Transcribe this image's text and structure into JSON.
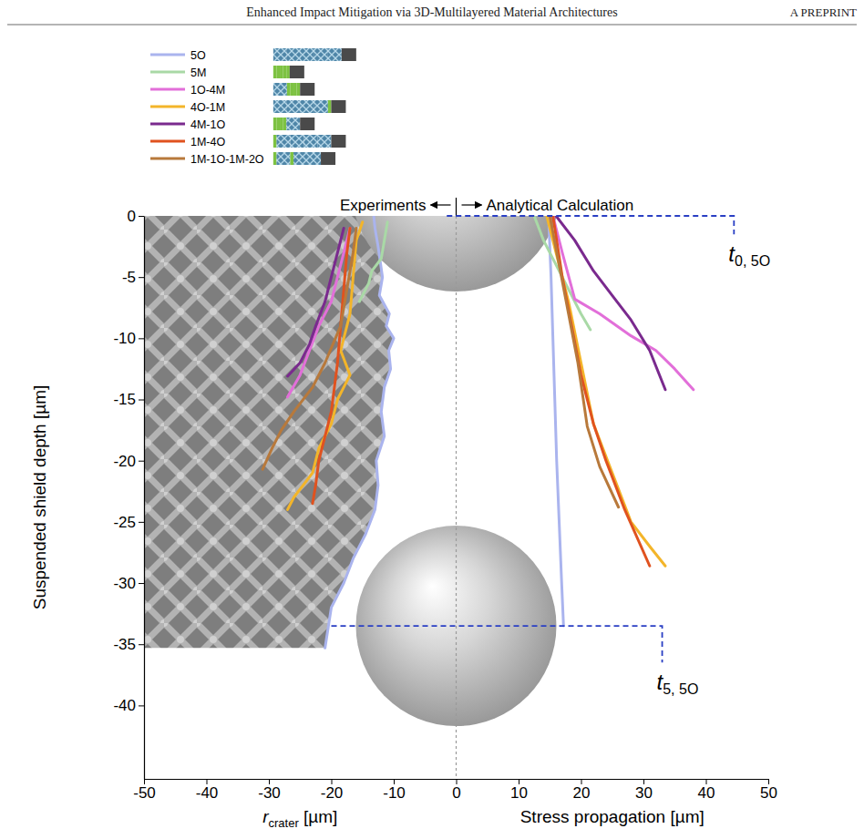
{
  "header": {
    "title": "Enhanced Impact Mitigation via 3D-Multilayered Material Architectures",
    "label": "A PREPRINT"
  },
  "chart_data": {
    "type": "line",
    "ylabel": "Suspended shield depth [µm]",
    "xlabel_left": {
      "text": "r",
      "subscript": "crater",
      "after": " [µm]"
    },
    "xlabel_right": "Stress propagation [µm]",
    "xlim": [
      -50,
      50
    ],
    "xticks": [
      -50,
      -40,
      -30,
      -20,
      -10,
      0,
      10,
      20,
      30,
      40,
      50
    ],
    "ylim": [
      -46,
      0
    ],
    "yticks": [
      -40,
      -35,
      -30,
      -25,
      -20,
      -15,
      -10,
      -5,
      0
    ],
    "legend": "top-left",
    "divider": {
      "x": 0,
      "left_text": "Experiments",
      "right_text": "Analytical Calculation"
    },
    "annotations": [
      {
        "text": "t",
        "subscript": "0, 5O",
        "line_x": [
          -1.5,
          44.5,
          44.5
        ],
        "line_y": [
          0,
          0,
          -1.5
        ]
      },
      {
        "text": "t",
        "subscript": "5, 5O",
        "line_x": [
          -20,
          33,
          33
        ],
        "line_y": [
          -33.5,
          -33.5,
          -36.5
        ]
      }
    ],
    "series": [
      {
        "name": "5O",
        "color": "#aab4ee",
        "experiment": {
          "x": [
            -13.2,
            -13.0,
            -12.5,
            -11.8,
            -12.3,
            -10.7,
            -11.2,
            -10.0,
            -10.8,
            -10.5,
            -11.5,
            -12.0,
            -11.5,
            -12.8,
            -12.5,
            -13.0,
            -14.5,
            -16.5,
            -18.0,
            -20.0,
            -21.0
          ],
          "values": [
            0,
            -1,
            -2.5,
            -5,
            -6.5,
            -8,
            -9,
            -10,
            -11,
            -12.5,
            -14,
            -16,
            -18,
            -20,
            -22,
            -24,
            -26,
            -28,
            -30,
            -32,
            -35.3
          ]
        },
        "analytical": {
          "x": [
            14.8,
            15.2,
            15.5,
            15.8,
            16.1,
            16.5,
            16.9,
            17.2
          ],
          "values": [
            0,
            -5,
            -10,
            -15,
            -20,
            -25,
            -30,
            -33.5
          ]
        }
      },
      {
        "name": "5M",
        "color": "#a9d9a6",
        "experiment": {
          "x": [
            -11,
            -11.5,
            -12,
            -13.5,
            -14,
            -15.5
          ],
          "values": [
            -0.5,
            -2,
            -3.5,
            -4.5,
            -5.5,
            -7
          ]
        },
        "analytical": {
          "x": [
            12.5,
            14,
            17,
            20,
            21.5
          ],
          "values": [
            0,
            -2,
            -5,
            -8,
            -9.3
          ]
        }
      },
      {
        "name": "1O-4M",
        "color": "#e26fd9",
        "experiment": {
          "x": [
            -17,
            -18,
            -19,
            -20,
            -22,
            -23.5,
            -25,
            -27
          ],
          "values": [
            -1,
            -3,
            -5,
            -7,
            -9,
            -11,
            -13,
            -14.8
          ]
        },
        "analytical": {
          "x": [
            15.5,
            17,
            19,
            23,
            28,
            32,
            35,
            38
          ],
          "values": [
            0,
            -3,
            -6.8,
            -8,
            -9.8,
            -11,
            -12.5,
            -14.2
          ]
        }
      },
      {
        "name": "4O-1M",
        "color": "#f3b52a",
        "experiment": {
          "x": [
            -15,
            -16,
            -16.5,
            -17,
            -18.5,
            -17,
            -19,
            -20,
            -22,
            -23,
            -26,
            -27
          ],
          "values": [
            -0.5,
            -2,
            -5,
            -8,
            -11,
            -13,
            -15,
            -17,
            -19,
            -21,
            -23,
            -24
          ]
        },
        "analytical": {
          "x": [
            14.5,
            16,
            18,
            20,
            22,
            25,
            28,
            31,
            33.5
          ],
          "values": [
            0,
            -3,
            -7,
            -12,
            -17,
            -21,
            -25,
            -27,
            -28.6
          ]
        }
      },
      {
        "name": "4M-1O",
        "color": "#7a2a8e",
        "experiment": {
          "x": [
            -18,
            -19,
            -20,
            -21,
            -22.5,
            -23.5,
            -25,
            -27
          ],
          "values": [
            -1,
            -3,
            -5,
            -7,
            -9,
            -10.5,
            -12,
            -13.1
          ]
        },
        "analytical": {
          "x": [
            16,
            19,
            22,
            25,
            28,
            31,
            33.5
          ],
          "values": [
            0,
            -2,
            -4.5,
            -6.5,
            -8.5,
            -11,
            -14.2
          ]
        }
      },
      {
        "name": "1M-4O",
        "color": "#e0521f",
        "experiment": {
          "x": [
            -17,
            -17.5,
            -18,
            -18.5,
            -19,
            -19.5,
            -20,
            -21,
            -22,
            -22.5,
            -23
          ],
          "values": [
            -1,
            -3,
            -6,
            -9,
            -12,
            -14,
            -16,
            -18,
            -20,
            -22,
            -23.5
          ]
        },
        "analytical": {
          "x": [
            15.5,
            17,
            18.5,
            20,
            22,
            24,
            27,
            31
          ],
          "values": [
            0,
            -5,
            -9,
            -13,
            -17,
            -20,
            -24,
            -28.6
          ]
        }
      },
      {
        "name": "1M-1O-1M-2O",
        "color": "#b8793b",
        "experiment": {
          "x": [
            -16,
            -16.5,
            -17.5,
            -18.5,
            -21,
            -23,
            -26,
            -28,
            -29.5,
            -31
          ],
          "values": [
            -1,
            -3,
            -6,
            -9,
            -12,
            -14,
            -16,
            -17.5,
            -19,
            -20.7
          ]
        },
        "analytical": {
          "x": [
            15,
            16.5,
            18,
            19.5,
            21,
            23,
            26
          ],
          "values": [
            0,
            -4,
            -8,
            -12,
            -17.2,
            -20.5,
            -23.8
          ]
        }
      }
    ]
  }
}
